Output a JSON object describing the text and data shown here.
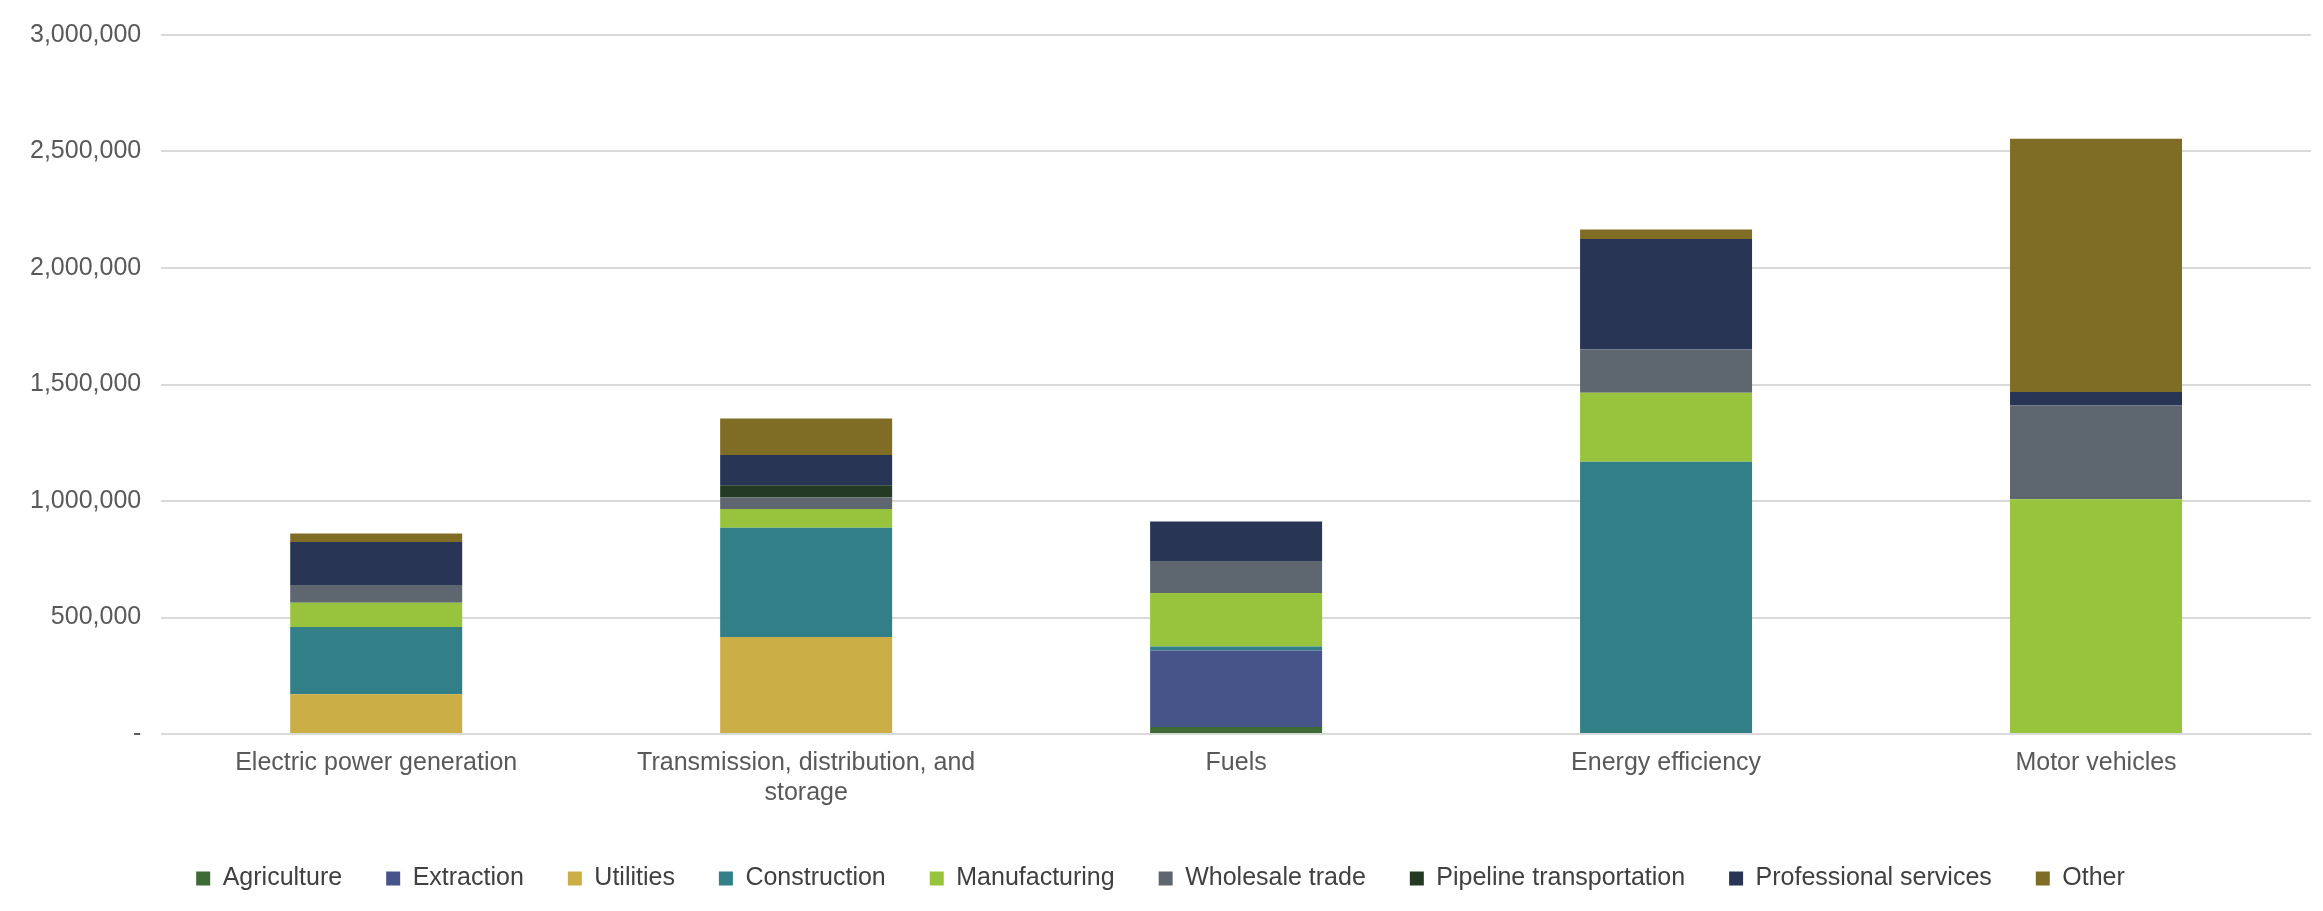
{
  "chart_data": {
    "type": "bar",
    "stacked": true,
    "categories": [
      "Electric power generation",
      "Transmission, distribution, and storage",
      "Fuels",
      "Energy efficiency",
      "Motor vehicles"
    ],
    "series": [
      {
        "name": "Agriculture",
        "color": "#3e6b35",
        "values": [
          0,
          0,
          30000,
          0,
          0
        ]
      },
      {
        "name": "Extraction",
        "color": "#46548a",
        "values": [
          0,
          0,
          328000,
          0,
          0
        ]
      },
      {
        "name": "Utilities",
        "color": "#cbae45",
        "values": [
          171000,
          416000,
          0,
          0,
          0
        ]
      },
      {
        "name": "Construction",
        "color": "#327f88",
        "values": [
          288000,
          469000,
          18000,
          1168000,
          0
        ]
      },
      {
        "name": "Manufacturing",
        "color": "#97c43c",
        "values": [
          104000,
          81000,
          229000,
          297000,
          1007000
        ]
      },
      {
        "name": "Wholesale trade",
        "color": "#5e6670",
        "values": [
          77000,
          49000,
          137000,
          185000,
          404000
        ]
      },
      {
        "name": "Pipeline transportation",
        "color": "#243a22",
        "values": [
          0,
          53000,
          0,
          0,
          0
        ]
      },
      {
        "name": "Professional services",
        "color": "#293554",
        "values": [
          184000,
          129000,
          170000,
          475000,
          57000
        ]
      },
      {
        "name": "Other",
        "color": "#7f6c25",
        "values": [
          37000,
          157000,
          0,
          40000,
          1087000
        ]
      }
    ],
    "ylim": [
      0,
      3000000
    ],
    "yticks": [
      {
        "value": 0,
        "label": "-"
      },
      {
        "value": 500000,
        "label": "500,000"
      },
      {
        "value": 1000000,
        "label": "1,000,000"
      },
      {
        "value": 1500000,
        "label": "1,500,000"
      },
      {
        "value": 2000000,
        "label": "2,000,000"
      },
      {
        "value": 2500000,
        "label": "2,500,000"
      },
      {
        "value": 3000000,
        "label": "3,000,000"
      }
    ],
    "grid": "y",
    "legend": "bottom"
  }
}
